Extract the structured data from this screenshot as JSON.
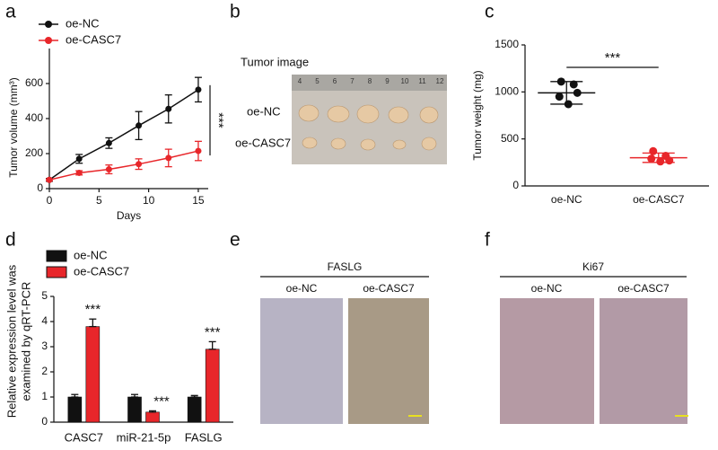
{
  "panel_labels": [
    "a",
    "b",
    "c",
    "d",
    "e",
    "f"
  ],
  "tumor_image": {
    "title": "Tumor image",
    "rows": [
      "oe-NC",
      "oe-CASC7"
    ],
    "ruler_labels": [
      "4",
      "5",
      "6",
      "7",
      "8",
      "9",
      "10",
      "11",
      "12"
    ]
  },
  "ihc": [
    {
      "title": "FASLG",
      "groups": [
        "oe-NC",
        "oe-CASC7"
      ]
    },
    {
      "title": "Ki67",
      "groups": [
        "oe-NC",
        "oe-CASC7"
      ]
    }
  ],
  "chart_data": [
    {
      "type": "line",
      "x_label": "Days",
      "y_label": "Tumor volume (mm³)",
      "x": [
        0,
        3,
        6,
        9,
        12,
        15
      ],
      "series": [
        {
          "name": "oe-NC",
          "color": "#111111",
          "values": [
            50,
            170,
            260,
            360,
            455,
            565
          ],
          "errors": [
            8,
            25,
            30,
            80,
            80,
            70
          ]
        },
        {
          "name": "oe-CASC7",
          "color": "#e8262a",
          "values": [
            50,
            90,
            110,
            140,
            175,
            215
          ],
          "errors": [
            5,
            12,
            25,
            30,
            50,
            55
          ]
        }
      ],
      "xlim": [
        0,
        16
      ],
      "xticks": [
        0,
        5,
        10,
        15
      ],
      "ylim": [
        0,
        800
      ],
      "yticks": [
        0,
        200,
        400,
        600
      ],
      "significance": "***",
      "legend": "top-left"
    },
    {
      "type": "scatter",
      "y_label": "Tumor weight (mg)",
      "categories": [
        "oe-NC",
        "oe-CASC7"
      ],
      "series": [
        {
          "name": "oe-NC",
          "color": "#111111",
          "values": [
            1110,
            1080,
            950,
            870,
            990
          ],
          "mean": 990,
          "sd": 120
        },
        {
          "name": "oe-CASC7",
          "color": "#e8262a",
          "values": [
            370,
            320,
            290,
            260,
            270
          ],
          "mean": 300,
          "sd": 50
        }
      ],
      "ylim": [
        0,
        1500
      ],
      "yticks": [
        0,
        500,
        1000,
        1500
      ],
      "significance": "***"
    },
    {
      "type": "bar",
      "y_label": [
        "Relative expression level was",
        "examined by qRT-PCR"
      ],
      "categories": [
        "CASC7",
        "miR-21-5p",
        "FASLG"
      ],
      "series": [
        {
          "name": "oe-NC",
          "color": "#111111",
          "values": [
            1,
            1,
            1
          ],
          "errors": [
            0.1,
            0.1,
            0.06
          ]
        },
        {
          "name": "oe-CASC7",
          "color": "#e8262a",
          "values": [
            3.8,
            0.4,
            2.9
          ],
          "errors": [
            0.3,
            0.05,
            0.3
          ],
          "significance": [
            "***",
            "***",
            "***"
          ]
        }
      ],
      "ylim": [
        0,
        5
      ],
      "yticks": [
        0,
        1,
        2,
        3,
        4,
        5
      ],
      "legend": "top-left"
    }
  ]
}
